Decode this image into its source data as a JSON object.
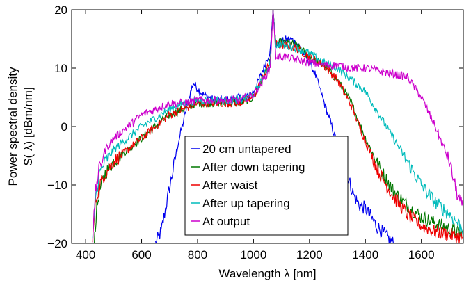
{
  "chart_data": {
    "type": "line",
    "title": "",
    "xlabel": "Wavelength λ [nm]",
    "ylabel_line1": "Power spectral density",
    "ylabel_line2": "S( λ) [dBm/nm]",
    "xlim": [
      350,
      1750
    ],
    "ylim": [
      -20,
      20
    ],
    "xticks": [
      400,
      600,
      800,
      1000,
      1200,
      1400,
      1600
    ],
    "yticks": [
      -20,
      -10,
      0,
      10,
      20
    ],
    "ytick_labels": [
      "−20",
      "−10",
      "0",
      "10",
      "20"
    ],
    "grid": false,
    "legend_position": "center",
    "series": [
      {
        "name": "20 cm untapered",
        "color": "#0000ee",
        "points": [
          [
            650,
            -20
          ],
          [
            670,
            -18
          ],
          [
            690,
            -13
          ],
          [
            710,
            -8
          ],
          [
            730,
            -3
          ],
          [
            750,
            1
          ],
          [
            770,
            5
          ],
          [
            785,
            7.5
          ],
          [
            800,
            6.5
          ],
          [
            820,
            5.5
          ],
          [
            860,
            4.5
          ],
          [
            900,
            4.5
          ],
          [
            940,
            5
          ],
          [
            980,
            5
          ],
          [
            1000,
            6
          ],
          [
            1020,
            8
          ],
          [
            1040,
            10.5
          ],
          [
            1060,
            13
          ],
          [
            1070,
            20
          ],
          [
            1080,
            14
          ],
          [
            1100,
            14.5
          ],
          [
            1120,
            15
          ],
          [
            1140,
            14.8
          ],
          [
            1160,
            14
          ],
          [
            1180,
            12.5
          ],
          [
            1200,
            11
          ],
          [
            1220,
            9
          ],
          [
            1240,
            6
          ],
          [
            1260,
            3
          ],
          [
            1280,
            0
          ],
          [
            1300,
            -3
          ],
          [
            1320,
            -6
          ],
          [
            1340,
            -9
          ],
          [
            1360,
            -12
          ],
          [
            1380,
            -13.5
          ],
          [
            1400,
            -14
          ],
          [
            1420,
            -15.5
          ],
          [
            1440,
            -17
          ],
          [
            1460,
            -18
          ],
          [
            1480,
            -19
          ],
          [
            1500,
            -20
          ]
        ]
      },
      {
        "name": "After down tapering",
        "color": "#007700",
        "points": [
          [
            430,
            -20
          ],
          [
            440,
            -14
          ],
          [
            450,
            -11
          ],
          [
            470,
            -8
          ],
          [
            500,
            -6
          ],
          [
            550,
            -4
          ],
          [
            600,
            -2
          ],
          [
            650,
            0
          ],
          [
            700,
            2
          ],
          [
            750,
            3
          ],
          [
            800,
            4
          ],
          [
            850,
            4
          ],
          [
            900,
            4
          ],
          [
            950,
            4
          ],
          [
            1000,
            5
          ],
          [
            1030,
            8
          ],
          [
            1060,
            11
          ],
          [
            1070,
            20
          ],
          [
            1080,
            14
          ],
          [
            1100,
            14.5
          ],
          [
            1150,
            14
          ],
          [
            1200,
            12
          ],
          [
            1250,
            10.5
          ],
          [
            1300,
            8
          ],
          [
            1350,
            4
          ],
          [
            1400,
            -2
          ],
          [
            1450,
            -7
          ],
          [
            1500,
            -11
          ],
          [
            1550,
            -13.5
          ],
          [
            1600,
            -15.5
          ],
          [
            1650,
            -16.5
          ],
          [
            1700,
            -17.5
          ],
          [
            1750,
            -18.5
          ]
        ]
      },
      {
        "name": "After waist",
        "color": "#ee0000",
        "points": [
          [
            425,
            -20
          ],
          [
            435,
            -13
          ],
          [
            450,
            -10
          ],
          [
            470,
            -8
          ],
          [
            500,
            -6
          ],
          [
            550,
            -4
          ],
          [
            600,
            -2
          ],
          [
            650,
            0
          ],
          [
            700,
            2
          ],
          [
            750,
            3
          ],
          [
            800,
            4
          ],
          [
            850,
            4
          ],
          [
            900,
            4
          ],
          [
            950,
            4
          ],
          [
            1000,
            5
          ],
          [
            1030,
            8
          ],
          [
            1060,
            11
          ],
          [
            1070,
            20
          ],
          [
            1080,
            14
          ],
          [
            1100,
            14
          ],
          [
            1150,
            13.5
          ],
          [
            1200,
            12
          ],
          [
            1250,
            10.5
          ],
          [
            1300,
            8
          ],
          [
            1350,
            3.5
          ],
          [
            1400,
            -2.5
          ],
          [
            1450,
            -8
          ],
          [
            1500,
            -12
          ],
          [
            1550,
            -15
          ],
          [
            1600,
            -17
          ],
          [
            1650,
            -18
          ],
          [
            1700,
            -18.5
          ],
          [
            1750,
            -19
          ]
        ]
      },
      {
        "name": "After up tapering",
        "color": "#00bbbb",
        "points": [
          [
            425,
            -20
          ],
          [
            435,
            -12
          ],
          [
            450,
            -8
          ],
          [
            470,
            -6
          ],
          [
            500,
            -4
          ],
          [
            550,
            -2
          ],
          [
            600,
            0
          ],
          [
            650,
            1.5
          ],
          [
            700,
            3
          ],
          [
            750,
            4
          ],
          [
            800,
            4.5
          ],
          [
            850,
            4.5
          ],
          [
            900,
            4.5
          ],
          [
            950,
            4.5
          ],
          [
            1000,
            5.5
          ],
          [
            1030,
            8
          ],
          [
            1060,
            11
          ],
          [
            1070,
            20
          ],
          [
            1080,
            14
          ],
          [
            1100,
            14
          ],
          [
            1150,
            13.5
          ],
          [
            1200,
            12.5
          ],
          [
            1250,
            11
          ],
          [
            1300,
            10
          ],
          [
            1350,
            8
          ],
          [
            1400,
            6
          ],
          [
            1450,
            2
          ],
          [
            1500,
            -2
          ],
          [
            1550,
            -6
          ],
          [
            1600,
            -10
          ],
          [
            1650,
            -13
          ],
          [
            1700,
            -15
          ],
          [
            1750,
            -17.5
          ]
        ]
      },
      {
        "name": "At output",
        "color": "#cc00cc",
        "points": [
          [
            425,
            -20
          ],
          [
            435,
            -11
          ],
          [
            450,
            -7
          ],
          [
            470,
            -4
          ],
          [
            500,
            -2
          ],
          [
            550,
            0
          ],
          [
            600,
            2
          ],
          [
            650,
            3
          ],
          [
            700,
            4
          ],
          [
            750,
            4
          ],
          [
            800,
            4.5
          ],
          [
            850,
            4.5
          ],
          [
            900,
            4.5
          ],
          [
            950,
            4.5
          ],
          [
            1000,
            5.5
          ],
          [
            1030,
            7.5
          ],
          [
            1060,
            10
          ],
          [
            1070,
            20
          ],
          [
            1080,
            12
          ],
          [
            1100,
            12
          ],
          [
            1150,
            11.5
          ],
          [
            1200,
            11
          ],
          [
            1250,
            10.5
          ],
          [
            1300,
            10.5
          ],
          [
            1350,
            10
          ],
          [
            1400,
            10
          ],
          [
            1450,
            9.5
          ],
          [
            1500,
            9
          ],
          [
            1550,
            8.5
          ],
          [
            1600,
            5
          ],
          [
            1650,
            0
          ],
          [
            1700,
            -6
          ],
          [
            1730,
            -12
          ],
          [
            1750,
            -14
          ]
        ]
      }
    ]
  }
}
